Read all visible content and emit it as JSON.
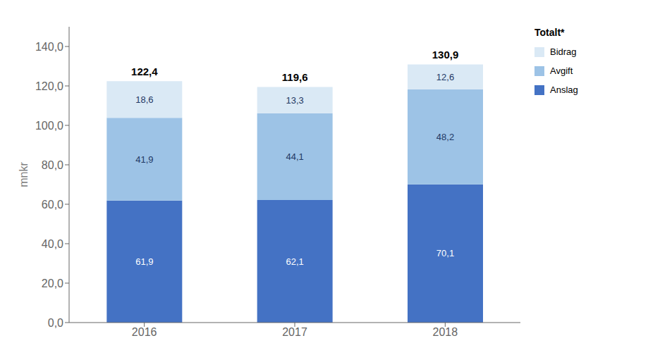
{
  "chart_data": {
    "type": "bar",
    "stacked": true,
    "data_labels": true,
    "grid": false,
    "legend": "right",
    "legend_title": "Totalt*",
    "y_label": "mnkr",
    "categories": [
      "2016",
      "2017",
      "2018"
    ],
    "series": [
      {
        "name": "Anslag",
        "color": "#4472C4",
        "values": [
          61.9,
          62.1,
          70.1
        ],
        "value_labels": [
          "61,9",
          "62,1",
          "70,1"
        ]
      },
      {
        "name": "Avgift",
        "color": "#9DC3E6",
        "values": [
          41.9,
          44.1,
          48.2
        ],
        "value_labels": [
          "41,9",
          "44,1",
          "48,2"
        ]
      },
      {
        "name": "Bidrag",
        "color": "#DAE9F5",
        "values": [
          18.6,
          13.3,
          12.6
        ],
        "value_labels": [
          "18,6",
          "13,3",
          "12,6"
        ]
      }
    ],
    "totals": [
      "122,4",
      "119,6",
      "130,9"
    ],
    "ylim": [
      0,
      150
    ],
    "yticks": [
      {
        "value": 0,
        "label": "0,0"
      },
      {
        "value": 20.0,
        "label": "20,0"
      },
      {
        "value": 40.0,
        "label": "40,0"
      },
      {
        "value": 60.0,
        "label": "60,0"
      },
      {
        "value": 80.0,
        "label": "80,0"
      },
      {
        "value": 100.0,
        "label": "100,0"
      },
      {
        "value": 120.0,
        "label": "120,0"
      },
      {
        "value": 140.0,
        "label": "140,0"
      }
    ]
  }
}
